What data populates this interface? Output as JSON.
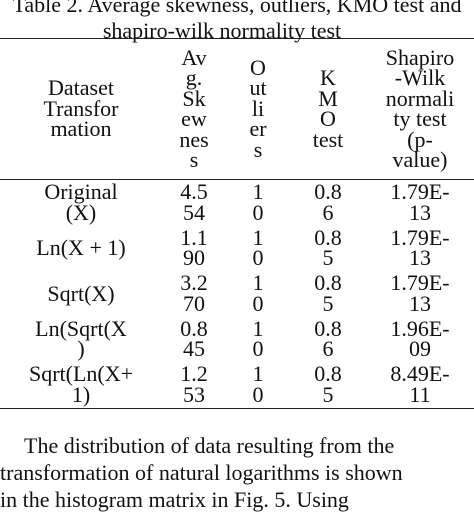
{
  "caption": {
    "line1": "Table 2. Average skewness, outliers, KMO test and",
    "line2": "shapiro-wilk normality test"
  },
  "table": {
    "headers": {
      "dataset": [
        "Dataset",
        "Transfor",
        "mation"
      ],
      "skewness": [
        "Av",
        "g.",
        "Sk",
        "ew",
        "nes",
        "s"
      ],
      "outliers": [
        "O",
        "ut",
        "li",
        "er",
        "s"
      ],
      "kmo": [
        "K",
        "M",
        "O",
        "test"
      ],
      "shapiro": [
        "Shapiro",
        "-Wilk",
        "normali",
        "ty test",
        "(p-",
        "value)"
      ]
    },
    "rows": [
      {
        "dataset": [
          "Original",
          "(X)"
        ],
        "skewness": [
          "4.5",
          "54"
        ],
        "outliers": [
          "1",
          "0"
        ],
        "kmo": [
          "0.8",
          "6"
        ],
        "shapiro": [
          "1.79E-",
          "13"
        ]
      },
      {
        "dataset": [
          "Ln(X + 1)",
          ""
        ],
        "skewness": [
          "1.1",
          "90"
        ],
        "outliers": [
          "1",
          "0"
        ],
        "kmo": [
          "0.8",
          "5"
        ],
        "shapiro": [
          "1.79E-",
          "13"
        ]
      },
      {
        "dataset": [
          "Sqrt(X)",
          ""
        ],
        "skewness": [
          "3.2",
          "70"
        ],
        "outliers": [
          "1",
          "0"
        ],
        "kmo": [
          "0.8",
          "5"
        ],
        "shapiro": [
          "1.79E-",
          "13"
        ]
      },
      {
        "dataset": [
          "Ln(Sqrt(X",
          ")"
        ],
        "skewness": [
          "0.8",
          "45"
        ],
        "outliers": [
          "1",
          "0"
        ],
        "kmo": [
          "0.8",
          "6"
        ],
        "shapiro": [
          "1.96E-",
          "09"
        ]
      },
      {
        "dataset": [
          "Sqrt(Ln(X+",
          "1)"
        ],
        "skewness": [
          "1.2",
          "53"
        ],
        "outliers": [
          "1",
          "0"
        ],
        "kmo": [
          "0.8",
          "5"
        ],
        "shapiro": [
          "8.49E-",
          "11"
        ]
      }
    ]
  },
  "paragraph": {
    "line1": "The distribution of data resulting from the",
    "line2": "transformation of natural logarithms is shown",
    "line3": "in the histogram matrix in Fig. 5. Using"
  }
}
